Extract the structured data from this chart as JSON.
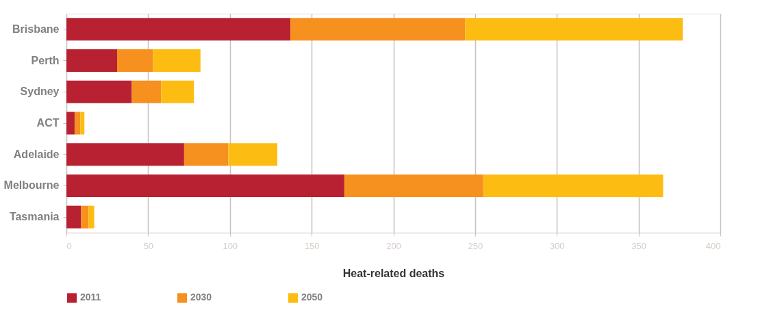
{
  "chart_data": {
    "type": "bar",
    "orientation": "horizontal",
    "stacked": true,
    "categories": [
      "Brisbane",
      "Perth",
      "Sydney",
      "ACT",
      "Adelaide",
      "Melbourne",
      "Tasmania"
    ],
    "series": [
      {
        "name": "2011",
        "color": "#b82132",
        "values": [
          137,
          31,
          40,
          5,
          72,
          170,
          9
        ]
      },
      {
        "name": "2030",
        "color": "#f6901e",
        "values": [
          107,
          22,
          18,
          3.5,
          27,
          85,
          4.5
        ]
      },
      {
        "name": "2050",
        "color": "#fdbc12",
        "values": [
          133,
          29,
          20,
          2.5,
          30,
          110,
          3.5
        ]
      }
    ],
    "xlabel": "Heat-related deaths",
    "xlim": [
      0,
      400
    ],
    "xticks": [
      0,
      50,
      100,
      150,
      200,
      250,
      300,
      350,
      400
    ],
    "grid": "x",
    "legend": "bottom"
  }
}
